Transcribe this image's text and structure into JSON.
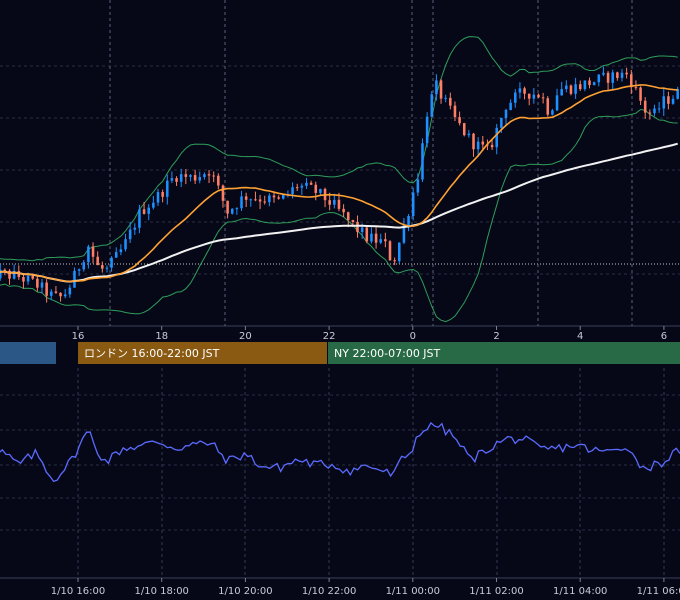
{
  "colors": {
    "background": "#060818",
    "grid": "#2a2e45",
    "vline": "#5a6078",
    "bull": "#1e90ff",
    "bear": "#ff7f66",
    "bollinger": "#2f9e5a",
    "ma_fast": "#ffa233",
    "ma_slow": "#f2f2f2",
    "indicator": "#5b6bff",
    "session_tokyo": "#2a5785",
    "session_london": "#8a5a12",
    "session_ny": "#276a45"
  },
  "sessions": [
    {
      "label": "",
      "color": "#2a5785"
    },
    {
      "label": "ロンドン 16:00-22:00 JST",
      "color": "#8a5a12"
    },
    {
      "label": "NY 22:00-07:00 JST",
      "color": "#276a45"
    }
  ],
  "chart_data": [
    {
      "type": "candlestick",
      "x_ticks": [
        "16",
        "18",
        "20",
        "22",
        "0",
        "2",
        "4",
        "6"
      ],
      "indicators": [
        "bollinger_bands",
        "moving_average_fast",
        "moving_average_slow"
      ],
      "grid": true,
      "ylim": [
        0,
        100
      ],
      "x_range": [
        0,
        80
      ],
      "anchors": [
        [
          0,
          10
        ],
        [
          2,
          10
        ],
        [
          4,
          9
        ],
        [
          6,
          6
        ],
        [
          8,
          1
        ],
        [
          9,
          1
        ],
        [
          10,
          6
        ],
        [
          12,
          21
        ],
        [
          13,
          13
        ],
        [
          14,
          11
        ],
        [
          16,
          20
        ],
        [
          18,
          34
        ],
        [
          20,
          40
        ],
        [
          22,
          48
        ],
        [
          24,
          47
        ],
        [
          26,
          50
        ],
        [
          28,
          34
        ],
        [
          30,
          40
        ],
        [
          32,
          39
        ],
        [
          34,
          38
        ],
        [
          36,
          44
        ],
        [
          38,
          42
        ],
        [
          40,
          37
        ],
        [
          42,
          30
        ],
        [
          44,
          24
        ],
        [
          46,
          22
        ],
        [
          47,
          14
        ],
        [
          48,
          25
        ],
        [
          49,
          37
        ],
        [
          50,
          50
        ],
        [
          51,
          74
        ],
        [
          52,
          82
        ],
        [
          54,
          70
        ],
        [
          56,
          61
        ],
        [
          58,
          57
        ],
        [
          60,
          75
        ],
        [
          62,
          80
        ],
        [
          64,
          79
        ],
        [
          65,
          72
        ],
        [
          66,
          81
        ],
        [
          68,
          82
        ],
        [
          70,
          84
        ],
        [
          72,
          86
        ],
        [
          74,
          87
        ],
        [
          75,
          80
        ],
        [
          76,
          73
        ],
        [
          77,
          71
        ],
        [
          78,
          76
        ],
        [
          80,
          80
        ]
      ]
    },
    {
      "type": "line",
      "ylim": [
        0,
        100
      ],
      "x_range": [
        0,
        80
      ],
      "x_ticks": [
        "1/10 16:00",
        "1/10 18:00",
        "1/10 20:00",
        "1/10 22:00",
        "1/11 00:00",
        "1/11 02:00",
        "1/11 04:00",
        "1/11 06:00"
      ],
      "grid": true,
      "anchors": [
        [
          0,
          47
        ],
        [
          2,
          55
        ],
        [
          4,
          44
        ],
        [
          6,
          54
        ],
        [
          8,
          30
        ],
        [
          10,
          47
        ],
        [
          12,
          74
        ],
        [
          13,
          56
        ],
        [
          14,
          46
        ],
        [
          16,
          58
        ],
        [
          18,
          60
        ],
        [
          20,
          64
        ],
        [
          22,
          58
        ],
        [
          24,
          61
        ],
        [
          26,
          63
        ],
        [
          28,
          47
        ],
        [
          30,
          53
        ],
        [
          32,
          42
        ],
        [
          34,
          41
        ],
        [
          36,
          48
        ],
        [
          38,
          44
        ],
        [
          40,
          44
        ],
        [
          42,
          38
        ],
        [
          44,
          43
        ],
        [
          46,
          38
        ],
        [
          47,
          34
        ],
        [
          48,
          48
        ],
        [
          49,
          54
        ],
        [
          50,
          72
        ],
        [
          52,
          79
        ],
        [
          54,
          68
        ],
        [
          56,
          48
        ],
        [
          58,
          58
        ],
        [
          60,
          66
        ],
        [
          62,
          66
        ],
        [
          64,
          57
        ],
        [
          66,
          58
        ],
        [
          68,
          61
        ],
        [
          70,
          56
        ],
        [
          72,
          55
        ],
        [
          74,
          61
        ],
        [
          75,
          46
        ],
        [
          76,
          41
        ],
        [
          78,
          46
        ],
        [
          80,
          57
        ]
      ]
    }
  ]
}
